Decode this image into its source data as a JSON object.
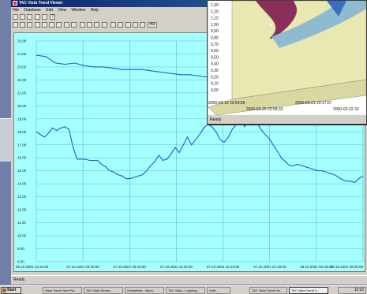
{
  "window": {
    "title": "TAC Vista Trend Viewer",
    "menu": [
      "File",
      "Database",
      "Edit",
      "View",
      "Window",
      "Help"
    ],
    "status": "Ready"
  },
  "toolbar2": {
    "zoom_label": "ms"
  },
  "colors": {
    "plot_bg": "#a4ffff",
    "series": "#1f5fbf",
    "grid": "#6b9fc8"
  },
  "chart_data": {
    "type": "line",
    "y_ticks": [
      "25,00",
      "24,00",
      "23,00",
      "22,00",
      "21,00",
      "20,00",
      "19,00",
      "18,00",
      "17,00",
      "16,00",
      "15,00",
      "14,00",
      "13,00",
      "12,00",
      "11,00",
      "10,00",
      "9,00",
      "8,00"
    ],
    "ylim": [
      8,
      25
    ],
    "x_ticks": [
      "06.10.2001 19:15:00",
      "07.10.2001 00:30:00",
      "07.10.2001 05:45:00",
      "07.10.2001 11:00:00",
      "07.10.2001 16:15:00",
      "07.10.2001 21:30:00",
      "08.10.2001 02:45:00",
      "08.10.2001 08:00:00"
    ],
    "series": [
      {
        "values": [
          [
            0,
            23.9
          ],
          [
            1,
            23.8
          ],
          [
            2,
            23.3
          ],
          [
            3,
            23.2
          ],
          [
            4,
            23.3
          ],
          [
            5,
            23.1
          ],
          [
            6,
            23.0
          ],
          [
            7,
            23.0
          ],
          [
            8,
            22.9
          ],
          [
            9,
            22.8
          ],
          [
            10,
            22.8
          ],
          [
            11,
            22.8
          ],
          [
            12,
            22.7
          ],
          [
            13,
            22.6
          ],
          [
            14,
            22.5
          ],
          [
            15,
            22.4
          ],
          [
            16,
            22.4
          ],
          [
            17,
            22.3
          ],
          [
            18,
            22.2
          ],
          [
            19,
            22.1
          ],
          [
            20,
            22.0
          ],
          [
            21,
            21.9
          ],
          [
            22,
            21.9
          ],
          [
            23,
            22.0
          ],
          [
            24,
            22.0
          ],
          [
            25,
            22.2
          ],
          [
            26,
            22.3
          ],
          [
            27,
            22.4
          ],
          [
            28,
            22.5
          ],
          [
            29,
            22.6
          ],
          [
            30,
            22.7
          ],
          [
            31,
            22.7
          ],
          [
            32,
            22.8
          ],
          [
            33,
            22.9
          ],
          [
            34,
            23.0
          ]
        ]
      },
      {
        "values": [
          [
            0,
            18.0
          ],
          [
            1,
            17.8
          ],
          [
            2,
            17.6
          ],
          [
            3,
            17.9
          ],
          [
            4,
            18.3
          ],
          [
            5,
            18.1
          ],
          [
            6,
            18.3
          ],
          [
            7,
            18.4
          ],
          [
            8,
            18.2
          ],
          [
            9,
            16.8
          ],
          [
            10,
            15.9
          ],
          [
            11,
            15.9
          ],
          [
            12,
            15.9
          ],
          [
            13,
            15.8
          ],
          [
            14,
            15.8
          ],
          [
            15,
            15.8
          ],
          [
            16,
            15.5
          ],
          [
            17,
            15.3
          ],
          [
            18,
            15.0
          ],
          [
            19,
            14.9
          ],
          [
            20,
            14.7
          ],
          [
            21,
            14.6
          ],
          [
            22,
            14.4
          ],
          [
            23,
            14.4
          ],
          [
            24,
            14.5
          ],
          [
            25,
            14.6
          ],
          [
            26,
            14.7
          ],
          [
            27,
            15.0
          ],
          [
            28,
            15.4
          ],
          [
            29,
            15.7
          ],
          [
            30,
            16.2
          ],
          [
            31,
            15.8
          ],
          [
            32,
            15.9
          ],
          [
            33,
            16.3
          ],
          [
            34,
            16.8
          ],
          [
            35,
            16.4
          ],
          [
            36,
            17.0
          ],
          [
            37,
            17.6
          ],
          [
            38,
            17.0
          ],
          [
            39,
            17.4
          ],
          [
            40,
            17.8
          ],
          [
            41,
            18.3
          ],
          [
            42,
            18.6
          ],
          [
            43,
            18.4
          ],
          [
            44,
            18.0
          ],
          [
            45,
            17.4
          ],
          [
            46,
            17.2
          ],
          [
            47,
            17.6
          ],
          [
            48,
            18.2
          ],
          [
            49,
            18.6
          ],
          [
            50,
            19.0
          ],
          [
            51,
            18.4
          ],
          [
            52,
            18.9
          ],
          [
            53,
            18.5
          ],
          [
            54,
            18.7
          ],
          [
            55,
            18.2
          ],
          [
            56,
            17.8
          ],
          [
            57,
            17.5
          ],
          [
            58,
            17.0
          ],
          [
            59,
            16.5
          ],
          [
            60,
            16.0
          ],
          [
            61,
            15.7
          ],
          [
            62,
            15.4
          ],
          [
            63,
            15.4
          ],
          [
            64,
            15.5
          ],
          [
            65,
            15.4
          ],
          [
            66,
            15.3
          ],
          [
            67,
            15.2
          ],
          [
            68,
            15.1
          ],
          [
            69,
            15.0
          ],
          [
            70,
            15.0
          ],
          [
            71,
            14.9
          ],
          [
            72,
            14.8
          ],
          [
            73,
            14.7
          ],
          [
            74,
            14.5
          ],
          [
            75,
            14.3
          ],
          [
            76,
            14.2
          ],
          [
            77,
            14.2
          ],
          [
            78,
            14.1
          ],
          [
            79,
            14.4
          ],
          [
            80,
            14.6
          ]
        ]
      }
    ]
  },
  "overlay": {
    "status": "Ready",
    "y_ticks": [
      "1,30",
      "1,20",
      "1,10",
      "1,00",
      "0,90",
      "0,80",
      "0,70",
      "0,60",
      "0,50",
      "0,40",
      "0,30",
      "0,20",
      "0,10",
      "0,00"
    ],
    "x_ticks_top": [
      "2000-03-19 22:59:59",
      "2000-03-21 23:17:07"
    ],
    "x_ticks_bottom": [
      "2000-03-20 23:08:33",
      "2000-03-22 23"
    ]
  },
  "taskbar": {
    "start_label": "Start",
    "clock": "11:52",
    "tasks": [
      "Vista Trend View Pro...",
      "TAC Vista Server...",
      "Ordnerliste - Micro...",
      "TAC Vista - Loginlog...",
      "Untit...",
      "TAC Vista Trend Vie...",
      "TAC Vista Trend V..."
    ]
  }
}
